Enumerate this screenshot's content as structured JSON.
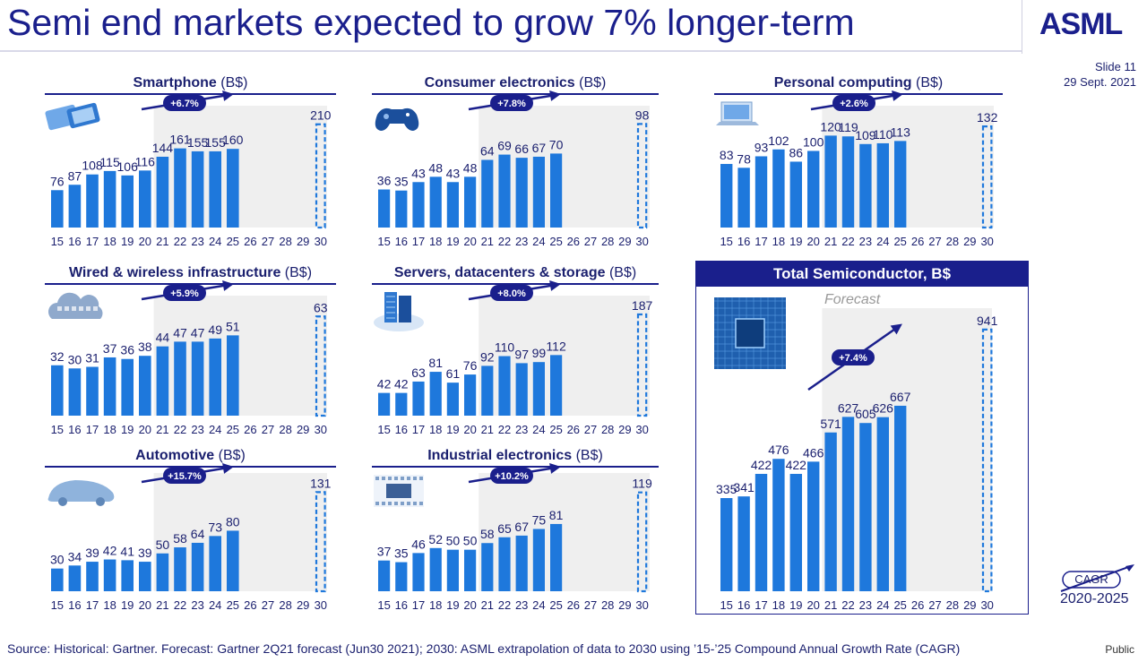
{
  "page": {
    "title": "Semi end markets expected to grow 7% longer-term",
    "logo": "ASML",
    "slide": "Slide 11",
    "date": "29 Sept. 2021",
    "source": "Source: Historical: Gartner. Forecast: Gartner 2Q21 forecast (Jun30 2021); 2030: ASML extrapolation of data to 2030 using ’15-’25 Compound Annual Growth Rate (CAGR)",
    "classification": "Public",
    "forecast_label": "Forecast",
    "cagr_legend_label": "CAGR",
    "cagr_legend_years": "2020-2025"
  },
  "colors": {
    "bar": "#1e78dc",
    "navy": "#1a1f8c",
    "shade": "#efefef"
  },
  "chart_data": [
    {
      "id": "smartphone",
      "type": "bar",
      "title": "Smartphone",
      "unit": "(B$)",
      "icon": "smartphone-icon",
      "cagr": "+6.7%",
      "categories": [
        "15",
        "16",
        "17",
        "18",
        "19",
        "20",
        "21",
        "22",
        "23",
        "24",
        "25",
        "26",
        "27",
        "28",
        "29",
        "30"
      ],
      "values": [
        76,
        87,
        108,
        115,
        106,
        116,
        144,
        161,
        155,
        155,
        160,
        null,
        null,
        null,
        null,
        210
      ],
      "labels": [
        "76",
        "87",
        "108",
        "115",
        "106",
        "116",
        "144",
        "161",
        "155",
        "155",
        "160",
        null,
        null,
        null,
        null,
        "210"
      ],
      "dashed_last": true,
      "forecast_from": "21"
    },
    {
      "id": "consumer",
      "type": "bar",
      "title": "Consumer electronics",
      "unit": "(B$)",
      "icon": "gamepad-icon",
      "cagr": "+7.8%",
      "categories": [
        "15",
        "16",
        "17",
        "18",
        "19",
        "20",
        "21",
        "22",
        "23",
        "24",
        "25",
        "26",
        "27",
        "28",
        "29",
        "30"
      ],
      "values": [
        36,
        35,
        43,
        48,
        43,
        48,
        64,
        69,
        66,
        67,
        70,
        null,
        null,
        null,
        null,
        98
      ],
      "labels": [
        "36",
        "35",
        "43",
        "48",
        "43",
        "48",
        "64",
        "69",
        "66",
        "67",
        "70",
        null,
        null,
        null,
        null,
        "98"
      ],
      "dashed_last": true,
      "forecast_from": "21"
    },
    {
      "id": "computing",
      "type": "bar",
      "title": "Personal computing",
      "unit": "(B$)",
      "icon": "laptop-icon",
      "cagr": "+2.6%",
      "categories": [
        "15",
        "16",
        "17",
        "18",
        "19",
        "20",
        "21",
        "22",
        "23",
        "24",
        "25",
        "26",
        "27",
        "28",
        "29",
        "30"
      ],
      "values": [
        83,
        78,
        93,
        102,
        86,
        100,
        120,
        119,
        109,
        110,
        113,
        null,
        null,
        null,
        null,
        132
      ],
      "labels": [
        "83",
        "78",
        "93",
        "102",
        "86",
        "100",
        "120",
        "119",
        "109",
        "110",
        "113",
        null,
        null,
        null,
        null,
        "132"
      ],
      "dashed_last": true,
      "forecast_from": "21"
    },
    {
      "id": "wired",
      "type": "bar",
      "title": "Wired & wireless infrastructure",
      "unit": "(B$)",
      "icon": "cloud-icon",
      "cagr": "+5.9%",
      "categories": [
        "15",
        "16",
        "17",
        "18",
        "19",
        "20",
        "21",
        "22",
        "23",
        "24",
        "25",
        "26",
        "27",
        "28",
        "29",
        "30"
      ],
      "values": [
        32,
        30,
        31,
        37,
        36,
        38,
        44,
        47,
        47,
        49,
        51,
        null,
        null,
        null,
        null,
        63
      ],
      "labels": [
        "32",
        "30",
        "31",
        "37",
        "36",
        "38",
        "44",
        "47",
        "47",
        "49",
        "51",
        null,
        null,
        null,
        null,
        "63"
      ],
      "dashed_last": true,
      "forecast_from": "21"
    },
    {
      "id": "servers",
      "type": "bar",
      "title": "Servers, datacenters & storage",
      "unit": "(B$)",
      "icon": "server-icon",
      "cagr": "+8.0%",
      "categories": [
        "15",
        "16",
        "17",
        "18",
        "19",
        "20",
        "21",
        "22",
        "23",
        "24",
        "25",
        "26",
        "27",
        "28",
        "29",
        "30"
      ],
      "values": [
        42,
        42,
        63,
        81,
        61,
        76,
        92,
        110,
        97,
        99,
        112,
        null,
        null,
        null,
        null,
        187
      ],
      "labels": [
        "42",
        "42",
        "63",
        "81",
        "61",
        "76",
        "92",
        "110",
        "97",
        "99",
        "112",
        null,
        null,
        null,
        null,
        "187"
      ],
      "dashed_last": true,
      "forecast_from": "21"
    },
    {
      "id": "automotive",
      "type": "bar",
      "title": "Automotive",
      "unit": "(B$)",
      "icon": "car-icon",
      "cagr": "+15.7%",
      "categories": [
        "15",
        "16",
        "17",
        "18",
        "19",
        "20",
        "21",
        "22",
        "23",
        "24",
        "25",
        "26",
        "27",
        "28",
        "29",
        "30"
      ],
      "values": [
        30,
        34,
        39,
        42,
        41,
        39,
        50,
        58,
        64,
        73,
        80,
        null,
        null,
        null,
        null,
        131
      ],
      "labels": [
        "30",
        "34",
        "39",
        "42",
        "41",
        "39",
        "50",
        "58",
        "64",
        "73",
        "80",
        null,
        null,
        null,
        null,
        "131"
      ],
      "dashed_last": true,
      "forecast_from": "21"
    },
    {
      "id": "industrial",
      "type": "bar",
      "title": "Industrial electronics",
      "unit": "(B$)",
      "icon": "iot-icon",
      "cagr": "+10.2%",
      "categories": [
        "15",
        "16",
        "17",
        "18",
        "19",
        "20",
        "21",
        "22",
        "23",
        "24",
        "25",
        "26",
        "27",
        "28",
        "29",
        "30"
      ],
      "values": [
        37,
        35,
        46,
        52,
        50,
        50,
        58,
        65,
        67,
        75,
        81,
        null,
        null,
        null,
        null,
        119
      ],
      "labels": [
        "37",
        "35",
        "46",
        "52",
        "50",
        "50",
        "58",
        "65",
        "67",
        "75",
        "81",
        null,
        null,
        null,
        null,
        "119"
      ],
      "dashed_last": true,
      "forecast_from": "21"
    },
    {
      "id": "total",
      "type": "bar",
      "title": "Total Semiconductor, B$",
      "unit": "",
      "icon": "chip-icon",
      "cagr": "+7.4%",
      "categories": [
        "15",
        "16",
        "17",
        "18",
        "19",
        "20",
        "21",
        "22",
        "23",
        "24",
        "25",
        "26",
        "27",
        "28",
        "29",
        "30"
      ],
      "values": [
        335,
        341,
        422,
        476,
        422,
        466,
        571,
        627,
        605,
        626,
        667,
        null,
        null,
        null,
        null,
        941
      ],
      "labels": [
        "335",
        "341",
        "422",
        "476",
        "422",
        "466",
        "571",
        "627",
        "605",
        "626",
        "667",
        null,
        null,
        null,
        null,
        "941"
      ],
      "dashed_last": true,
      "forecast_from": "21"
    }
  ]
}
